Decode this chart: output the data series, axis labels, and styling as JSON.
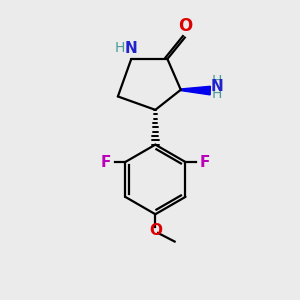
{
  "bg_color": "#ebebeb",
  "bond_color": "#000000",
  "N_color": "#2222cc",
  "O_color": "#dd0000",
  "F_color": "#bb00bb",
  "NH_color": "#4a9a9a",
  "stereo_wedge_color": "#0000ee",
  "xlim": [
    0,
    10
  ],
  "ylim": [
    0,
    11
  ],
  "figsize": [
    3.0,
    3.0
  ],
  "dpi": 100,
  "bond_lw": 1.6,
  "font_size_atom": 11,
  "font_size_H": 10
}
